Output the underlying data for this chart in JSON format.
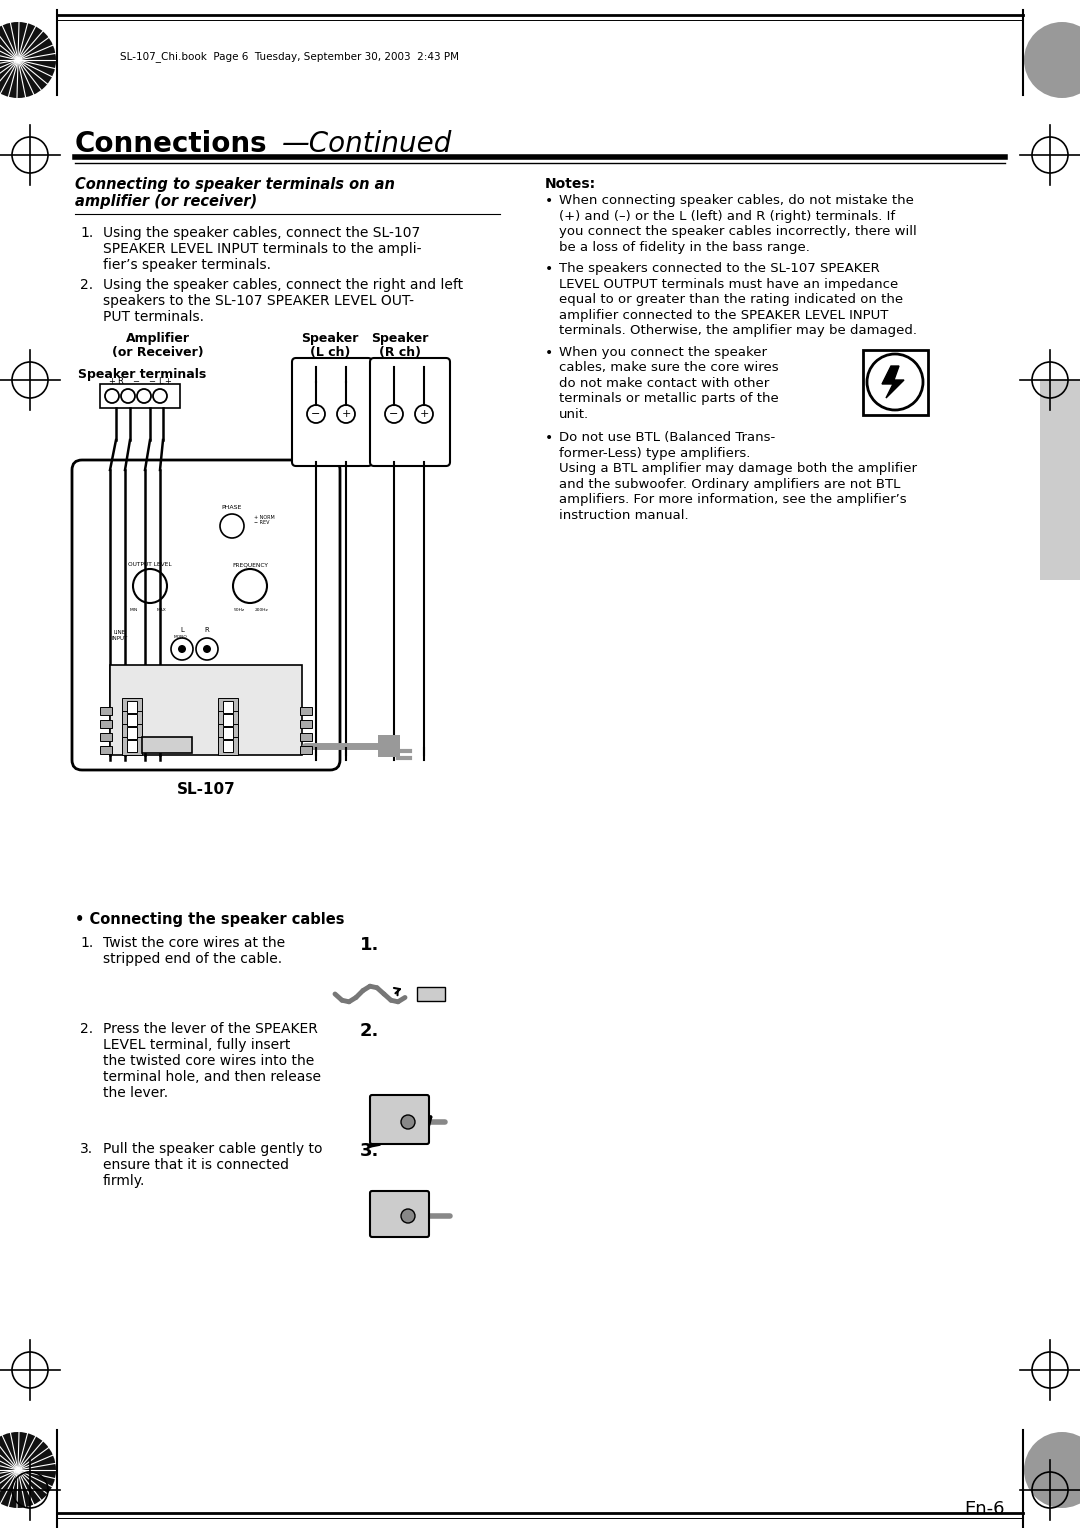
{
  "page_bg": "#ffffff",
  "header_file_text": "SL-107_Chi.book  Page 6  Tuesday, September 30, 2003  2:43 PM",
  "title_bold": "Connections",
  "title_italic": "—Continued",
  "section_title_line1": "Connecting to speaker terminals on an",
  "section_title_line2": "amplifier (or receiver)",
  "step1_text_lines": [
    "Using the speaker cables, connect the SL-107",
    "SPEAKER LEVEL INPUT terminals to the ampli-",
    "fier’s speaker terminals."
  ],
  "step2_text_lines": [
    "Using the speaker cables, connect the right and left",
    "speakers to the SL-107 SPEAKER LEVEL OUT-",
    "PUT terminals."
  ],
  "amp_label_line1": "Amplifier",
  "amp_label_line2": "(or Receiver)",
  "spk_terminals_label": "Speaker terminals",
  "spk_l_label_line1": "Speaker",
  "spk_l_label_line2": "(L ch)",
  "spk_r_label_line1": "Speaker",
  "spk_r_label_line2": "(R ch)",
  "sl107_label": "SL-107",
  "notes_title": "Notes:",
  "note1_lines": [
    "When connecting speaker cables, do not mistake the",
    "(+) and (–) or the L (left) and R (right) terminals. If",
    "you connect the speaker cables incorrectly, there will",
    "be a loss of fidelity in the bass range."
  ],
  "note2_lines": [
    "The speakers connected to the SL-107 SPEAKER",
    "LEVEL OUTPUT terminals must have an impedance",
    "equal to or greater than the rating indicated on the",
    "amplifier connected to the SPEAKER LEVEL INPUT",
    "terminals. Otherwise, the amplifier may be damaged."
  ],
  "note3_lines": [
    "When you connect the speaker",
    "cables, make sure the core wires",
    "do not make contact with other",
    "terminals or metallic parts of the",
    "unit."
  ],
  "note4_line1": "Do not use BTL (Balanced Trans-",
  "note4_line2": "former-Less) type amplifiers.",
  "note4_lines_b": [
    "Using a BTL amplifier may damage both the amplifier",
    "and the subwoofer. Ordinary amplifiers are not BTL",
    "amplifiers. For more information, see the amplifier’s",
    "instruction manual."
  ],
  "cable_section_title": "• Connecting the speaker cables",
  "cable_step1_lines": [
    "Twist the core wires at the",
    "stripped end of the cable."
  ],
  "cable_step2_lines": [
    "Press the lever of the SPEAKER",
    "LEVEL terminal, fully insert",
    "the twisted core wires into the",
    "terminal hole, and then release",
    "the lever."
  ],
  "cable_step3_lines": [
    "Pull the speaker cable gently to",
    "ensure that it is connected",
    "firmly."
  ],
  "page_number": "En-6"
}
